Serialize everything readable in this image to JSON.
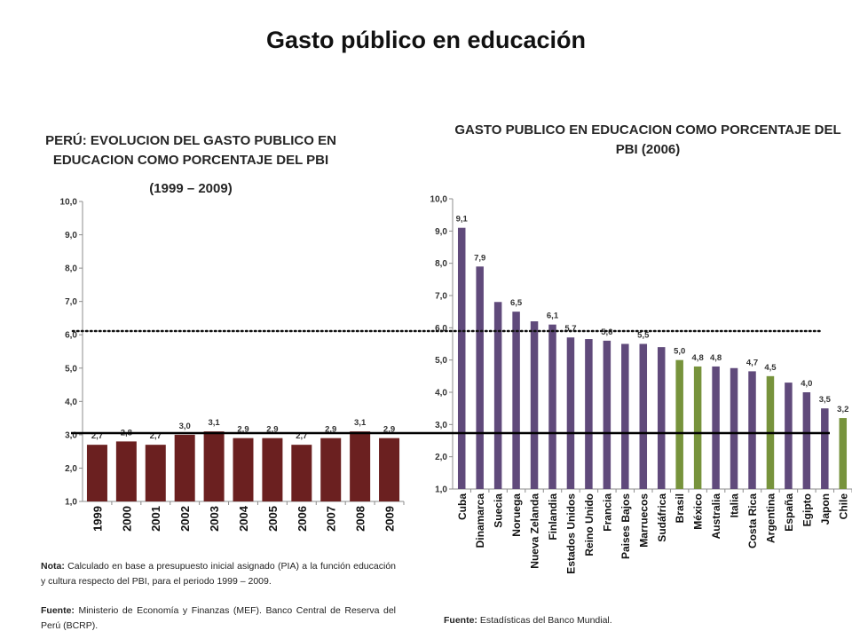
{
  "title": "Gasto público en educación",
  "colors": {
    "peru_bar": "#6b2020",
    "default_bar": "#604a7b",
    "highlight_bar": "#77933c"
  },
  "chart_data": [
    {
      "type": "bar",
      "title": "PERÚ: EVOLUCION DEL GASTO PUBLICO EN EDUCACION COMO PORCENTAJE DEL PBI",
      "subtitle": "(1999 – 2009)",
      "categories": [
        "1999",
        "2000",
        "2001",
        "2002",
        "2003",
        "2004",
        "2005",
        "2006",
        "2007",
        "2008",
        "2009"
      ],
      "values": [
        2.7,
        2.8,
        2.7,
        3.0,
        3.1,
        2.9,
        2.9,
        2.7,
        2.9,
        3.1,
        2.9
      ],
      "data_labels": [
        "2,7",
        "2,8",
        "2,7",
        "3,0",
        "3,1",
        "2,9",
        "2,9",
        "2,7",
        "2,9",
        "3,1",
        "2,9"
      ],
      "ylim": [
        1,
        10
      ],
      "yticks": [
        "1,0",
        "2,0",
        "3,0",
        "4,0",
        "5,0",
        "6,0",
        "7,0",
        "8,0",
        "9,0",
        "10,0"
      ],
      "grid": false
    },
    {
      "type": "bar",
      "title": "GASTO PUBLICO EN EDUCACION COMO PORCENTAJE DEL PBI (2006)",
      "categories": [
        "Cuba",
        "Dinamarca",
        "Suecia",
        "Noruega",
        "Nueva Zelanda",
        "Finlandia",
        "Estados Unidos",
        "Reino Unido",
        "Francia",
        "Paises Bajos",
        "Marruecos",
        "Sudáfrica",
        "Brasil",
        "México",
        "Australia",
        "Italia",
        "Costa Rica",
        "Argentina",
        "España",
        "Egipto",
        "Japon",
        "Chile"
      ],
      "values": [
        9.1,
        7.9,
        6.8,
        6.5,
        6.2,
        6.1,
        5.7,
        5.65,
        5.6,
        5.5,
        5.5,
        5.4,
        5.0,
        4.8,
        4.8,
        4.75,
        4.65,
        4.5,
        4.3,
        4.0,
        3.5,
        3.2
      ],
      "data_labels": [
        "9,1",
        "7,9",
        "",
        "6,5",
        "",
        "6,1",
        "5,7",
        "",
        "5,6",
        "",
        "5,5",
        "",
        "5,0",
        "4,8",
        "4,8",
        "",
        "4,7",
        "4,5",
        "",
        "4,0",
        "3,5",
        "3,2"
      ],
      "highlighted": [
        "Brasil",
        "México",
        "Argentina",
        "Chile"
      ],
      "ylim": [
        1,
        10
      ],
      "yticks": [
        "1,0",
        "2,0",
        "3,0",
        "4,0",
        "5,0",
        "6,0",
        "7,0",
        "8,0",
        "9,0",
        "10,0"
      ],
      "grid": false
    }
  ],
  "reference_lines": [
    {
      "value": 6.0,
      "style": "dotted"
    },
    {
      "value": 3.0,
      "style": "solid"
    }
  ],
  "notes": {
    "nota_label": "Nota:",
    "nota_text": " Calculado en base a presupuesto inicial asignado (PIA) a la función educación y cultura respecto del PBI, para el periodo 1999 – 2009.",
    "fuente_label": "Fuente:",
    "fuente_left_text": " Ministerio de Economía y Finanzas (MEF). Banco Central de Reserva del Perú (BCRP).",
    "fuente_right_text": " Estadísticas del Banco Mundial."
  }
}
